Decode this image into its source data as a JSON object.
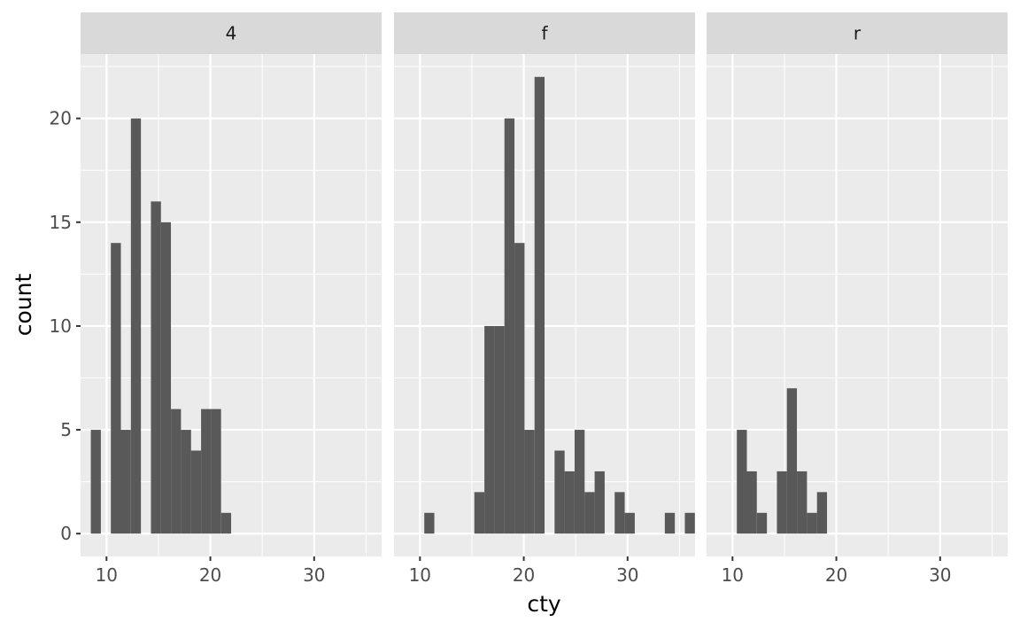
{
  "chart_data": {
    "type": "bar",
    "subtype": "histogram-facets",
    "xlabel": "cty",
    "ylabel": "count",
    "xlim": [
      7.5,
      36.5
    ],
    "ylim": [
      -1.1,
      23.1
    ],
    "x_ticks": [
      10,
      20,
      30
    ],
    "y_ticks": [
      0,
      5,
      10,
      15,
      20
    ],
    "bin_width": 0.9655,
    "grid": true,
    "colors": {
      "bar": "#595959",
      "panel_bg": "#ebebeb",
      "strip_bg": "#d9d9d9",
      "grid": "#ffffff"
    },
    "facets": [
      {
        "label": "4",
        "bins": [
          {
            "x": 8.97,
            "count": 5
          },
          {
            "x": 10.9,
            "count": 14
          },
          {
            "x": 11.86,
            "count": 5
          },
          {
            "x": 12.83,
            "count": 20
          },
          {
            "x": 14.76,
            "count": 16
          },
          {
            "x": 15.72,
            "count": 15
          },
          {
            "x": 16.69,
            "count": 6
          },
          {
            "x": 17.66,
            "count": 5
          },
          {
            "x": 18.62,
            "count": 4
          },
          {
            "x": 19.59,
            "count": 6
          },
          {
            "x": 20.55,
            "count": 6
          },
          {
            "x": 21.52,
            "count": 1
          }
        ]
      },
      {
        "label": "f",
        "bins": [
          {
            "x": 10.9,
            "count": 1
          },
          {
            "x": 15.72,
            "count": 2
          },
          {
            "x": 16.69,
            "count": 10
          },
          {
            "x": 17.66,
            "count": 10
          },
          {
            "x": 18.62,
            "count": 20
          },
          {
            "x": 19.59,
            "count": 14
          },
          {
            "x": 20.55,
            "count": 5
          },
          {
            "x": 21.52,
            "count": 22
          },
          {
            "x": 23.45,
            "count": 4
          },
          {
            "x": 24.41,
            "count": 3
          },
          {
            "x": 25.38,
            "count": 5
          },
          {
            "x": 26.34,
            "count": 2
          },
          {
            "x": 27.31,
            "count": 3
          },
          {
            "x": 29.24,
            "count": 2
          },
          {
            "x": 30.21,
            "count": 1
          },
          {
            "x": 34.07,
            "count": 1
          },
          {
            "x": 36.0,
            "count": 1
          }
        ]
      },
      {
        "label": "r",
        "bins": [
          {
            "x": 10.9,
            "count": 5
          },
          {
            "x": 11.86,
            "count": 3
          },
          {
            "x": 12.83,
            "count": 1
          },
          {
            "x": 14.76,
            "count": 3
          },
          {
            "x": 15.72,
            "count": 7
          },
          {
            "x": 16.69,
            "count": 3
          },
          {
            "x": 17.66,
            "count": 1
          },
          {
            "x": 18.62,
            "count": 2
          }
        ]
      }
    ]
  }
}
